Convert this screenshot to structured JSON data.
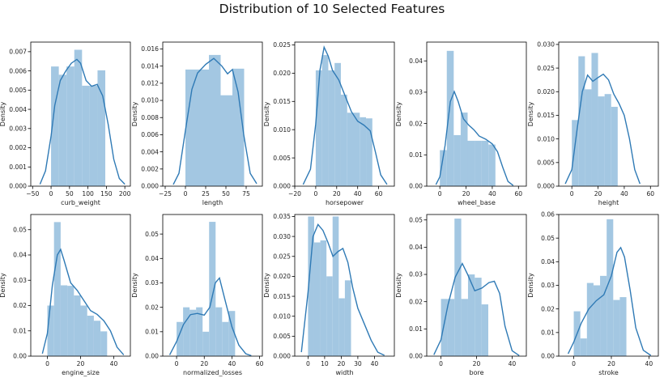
{
  "title": "Distribution of 10 Selected Features",
  "colors": {
    "bar": "#9ec4e0",
    "kde": "#2f7ab5",
    "axes": "#000000"
  },
  "chart_data": [
    {
      "type": "histogram+kde",
      "xlabel": "curb_weight",
      "ylabel": "Density",
      "xlim": [
        -55,
        215
      ],
      "ylim": [
        0,
        0.0075
      ],
      "xticks": [
        -50,
        0,
        50,
        100,
        150,
        200
      ],
      "xtick_labels": [
        "−50",
        "0",
        "50",
        "100",
        "150",
        "200"
      ],
      "yticks": [
        0,
        0.001,
        0.002,
        0.003,
        0.004,
        0.005,
        0.006,
        0.007
      ],
      "ytick_labels": [
        "0.000",
        "0.001",
        "0.002",
        "0.003",
        "0.004",
        "0.005",
        "0.006",
        "0.007"
      ],
      "bins": [
        0,
        21,
        42,
        63,
        84,
        105,
        126,
        147,
        168
      ],
      "values": [
        0.00623,
        0.0058,
        0.00623,
        0.0071,
        0.00523,
        0.00523,
        0.00603,
        0
      ],
      "kde_x": [
        -30,
        -15,
        0,
        10,
        25,
        40,
        55,
        70,
        80,
        95,
        110,
        125,
        140,
        155,
        170,
        185,
        200
      ],
      "kde_y": [
        0.0001,
        0.0008,
        0.0026,
        0.0042,
        0.0055,
        0.006,
        0.0064,
        0.0066,
        0.0064,
        0.0055,
        0.0052,
        0.0053,
        0.0047,
        0.0032,
        0.0014,
        0.0004,
        0.0001
      ]
    },
    {
      "type": "histogram+kde",
      "xlabel": "length",
      "ylabel": "Density",
      "xlim": [
        -28,
        95
      ],
      "ylim": [
        0,
        0.0168
      ],
      "xticks": [
        -25,
        0,
        25,
        50,
        75
      ],
      "xtick_labels": [
        "−25",
        "0",
        "25",
        "50",
        "75"
      ],
      "yticks": [
        0,
        0.002,
        0.004,
        0.006,
        0.008,
        0.01,
        0.012,
        0.014,
        0.016
      ],
      "ytick_labels": [
        "0.000",
        "0.002",
        "0.004",
        "0.006",
        "0.008",
        "0.010",
        "0.012",
        "0.014",
        "0.016"
      ],
      "bins": [
        0,
        14.5,
        29,
        43.5,
        58,
        72.5
      ],
      "values": [
        0.0136,
        0.0136,
        0.0153,
        0.0106,
        0.0137
      ],
      "kde_x": [
        -15,
        -8,
        0,
        8,
        15,
        25,
        35,
        45,
        52,
        58,
        65,
        72,
        80,
        88
      ],
      "kde_y": [
        0.0002,
        0.0015,
        0.0065,
        0.0113,
        0.0132,
        0.0142,
        0.0149,
        0.014,
        0.0131,
        0.0136,
        0.011,
        0.006,
        0.0015,
        0.0003
      ]
    },
    {
      "type": "histogram+kde",
      "xlabel": "horsepower",
      "ylabel": "Density",
      "xlim": [
        -20,
        75
      ],
      "ylim": [
        0,
        0.0255
      ],
      "xticks": [
        -20,
        0,
        20,
        40,
        60
      ],
      "xtick_labels": [
        "−20",
        "0",
        "20",
        "40",
        "60"
      ],
      "yticks": [
        0,
        0.005,
        0.01,
        0.015,
        0.02,
        0.025
      ],
      "ytick_labels": [
        "0.000",
        "0.005",
        "0.010",
        "0.015",
        "0.020",
        "0.025"
      ],
      "bins": [
        0,
        6,
        12,
        18,
        24,
        30,
        36,
        42,
        48,
        54,
        60
      ],
      "values": [
        0.0205,
        0.0232,
        0.0205,
        0.0218,
        0.0162,
        0.013,
        0.013,
        0.0122,
        0.012,
        0.0
      ],
      "kde_x": [
        -12,
        -5,
        0,
        4,
        8,
        12,
        16,
        22,
        28,
        34,
        40,
        46,
        52,
        57,
        62,
        68
      ],
      "kde_y": [
        0.0003,
        0.003,
        0.011,
        0.0205,
        0.0246,
        0.023,
        0.0205,
        0.0188,
        0.016,
        0.0132,
        0.0115,
        0.0108,
        0.0098,
        0.006,
        0.002,
        0.0003
      ]
    },
    {
      "type": "histogram+kde",
      "xlabel": "wheel_base",
      "ylabel": "Density",
      "xlim": [
        -10,
        66
      ],
      "ylim": [
        0,
        0.046
      ],
      "xticks": [
        0,
        20,
        40,
        60
      ],
      "xtick_labels": [
        "0",
        "20",
        "40",
        "60"
      ],
      "yticks": [
        0,
        0.01,
        0.02,
        0.03,
        0.04
      ],
      "ytick_labels": [
        "0.00",
        "0.01",
        "0.02",
        "0.03",
        "0.04"
      ],
      "bins": [
        0,
        5.3,
        10.6,
        15.9,
        21.2,
        26.5,
        31.8,
        37.1,
        42.4,
        47.7,
        53
      ],
      "values": [
        0.0115,
        0.0432,
        0.0163,
        0.0235,
        0.0145,
        0.0145,
        0.0145,
        0.0133,
        0.0,
        0.0
      ],
      "kde_x": [
        -3,
        0,
        4,
        8,
        11,
        14,
        18,
        22,
        26,
        30,
        35,
        40,
        44,
        48,
        52,
        56
      ],
      "kde_y": [
        0.0005,
        0.003,
        0.013,
        0.027,
        0.0302,
        0.027,
        0.0215,
        0.0195,
        0.018,
        0.016,
        0.015,
        0.0135,
        0.011,
        0.006,
        0.0015,
        0.0002
      ]
    },
    {
      "type": "histogram+kde",
      "xlabel": "height",
      "ylabel": "Density",
      "xlim": [
        -10,
        66
      ],
      "ylim": [
        0,
        0.0305
      ],
      "xticks": [
        0,
        20,
        40,
        60
      ],
      "xtick_labels": [
        "0",
        "20",
        "40",
        "60"
      ],
      "yticks": [
        0,
        0.005,
        0.01,
        0.015,
        0.02,
        0.025,
        0.03
      ],
      "ytick_labels": [
        "0.000",
        "0.005",
        "0.010",
        "0.015",
        "0.020",
        "0.025",
        "0.030"
      ],
      "bins": [
        0,
        5,
        10,
        15,
        20,
        25,
        30,
        35,
        40,
        45,
        50
      ],
      "values": [
        0.014,
        0.0275,
        0.0205,
        0.0282,
        0.019,
        0.0195,
        0.0168,
        0.0,
        0.0,
        0.0
      ],
      "kde_x": [
        -5,
        0,
        4,
        8,
        12,
        16,
        20,
        24,
        28,
        32,
        36,
        40,
        44,
        48,
        52
      ],
      "kde_y": [
        0.0005,
        0.0035,
        0.012,
        0.02,
        0.0235,
        0.0222,
        0.023,
        0.0237,
        0.0225,
        0.0195,
        0.0175,
        0.015,
        0.01,
        0.0035,
        0.0005
      ]
    },
    {
      "type": "histogram+kde",
      "xlabel": "engine_size",
      "ylabel": "Density",
      "xlim": [
        -10,
        50
      ],
      "ylim": [
        0,
        0.056
      ],
      "xticks": [
        0,
        20,
        40
      ],
      "xtick_labels": [
        "0",
        "20",
        "40"
      ],
      "yticks": [
        0,
        0.01,
        0.02,
        0.03,
        0.04,
        0.05
      ],
      "ytick_labels": [
        "0.00",
        "0.01",
        "0.02",
        "0.03",
        "0.04",
        "0.05"
      ],
      "bins": [
        0,
        4,
        8,
        12,
        16,
        20,
        24,
        28,
        32,
        36,
        40
      ],
      "values": [
        0.02,
        0.053,
        0.028,
        0.0278,
        0.024,
        0.02,
        0.016,
        0.014,
        0.0098,
        0.0
      ],
      "kde_x": [
        -3,
        0,
        3,
        6,
        8,
        10,
        14,
        18,
        22,
        26,
        30,
        34,
        38,
        42,
        46
      ],
      "kde_y": [
        0.001,
        0.009,
        0.028,
        0.04,
        0.0422,
        0.038,
        0.029,
        0.026,
        0.022,
        0.018,
        0.0165,
        0.014,
        0.01,
        0.0035,
        0.0005
      ]
    },
    {
      "type": "histogram+kde",
      "xlabel": "normalized_losses",
      "ylabel": "Density",
      "xlim": [
        -10,
        62
      ],
      "ylim": [
        0,
        0.058
      ],
      "xticks": [
        0,
        20,
        40,
        60
      ],
      "xtick_labels": [
        "0",
        "20",
        "40",
        "60"
      ],
      "yticks": [
        0,
        0.01,
        0.02,
        0.03,
        0.04,
        0.05
      ],
      "ytick_labels": [
        "0.00",
        "0.01",
        "0.02",
        "0.03",
        "0.04",
        "0.05"
      ],
      "bins": [
        0,
        4.7,
        9.4,
        14.1,
        18.8,
        23.5,
        28.2,
        32.9,
        37.6,
        42.3,
        47
      ],
      "values": [
        0.014,
        0.02,
        0.019,
        0.02,
        0.01,
        0.055,
        0.02,
        0.014,
        0.0185,
        0.0
      ],
      "kde_x": [
        -5,
        0,
        5,
        10,
        15,
        20,
        24,
        28,
        31,
        35,
        40,
        45,
        50,
        54
      ],
      "kde_y": [
        0.0005,
        0.006,
        0.013,
        0.017,
        0.0175,
        0.0168,
        0.02,
        0.03,
        0.032,
        0.023,
        0.012,
        0.0045,
        0.001,
        0.0002
      ]
    },
    {
      "type": "histogram+kde",
      "xlabel": "width",
      "ylabel": "Density",
      "xlim": [
        -8,
        52
      ],
      "ylim": [
        0,
        0.0355
      ],
      "xticks": [
        0,
        10,
        20,
        30,
        40
      ],
      "xtick_labels": [
        "0",
        "10",
        "20",
        "30",
        "40"
      ],
      "yticks": [
        0,
        0.005,
        0.01,
        0.015,
        0.02,
        0.025,
        0.03,
        0.035
      ],
      "ytick_labels": [
        "0.000",
        "0.005",
        "0.010",
        "0.015",
        "0.020",
        "0.025",
        "0.030",
        "0.035"
      ],
      "bins": [
        0,
        3.7,
        7.4,
        11.1,
        14.8,
        18.5,
        22.2,
        25.9,
        29.6,
        33.3,
        37
      ],
      "values": [
        0.035,
        0.0285,
        0.029,
        0.02,
        0.035,
        0.0145,
        0.019,
        0.0,
        0.0,
        0.0
      ],
      "kde_x": [
        -4,
        0,
        3,
        6,
        9,
        12,
        15,
        18,
        21,
        24,
        27,
        30,
        34,
        38,
        42,
        46
      ],
      "kde_y": [
        0.001,
        0.016,
        0.03,
        0.033,
        0.0315,
        0.0285,
        0.025,
        0.0262,
        0.027,
        0.0235,
        0.017,
        0.012,
        0.008,
        0.004,
        0.001,
        0.0002
      ]
    },
    {
      "type": "histogram+kde",
      "xlabel": "bore",
      "ylabel": "Density",
      "xlim": [
        -8,
        48
      ],
      "ylim": [
        0,
        0.052
      ],
      "xticks": [
        0,
        20,
        40
      ],
      "xtick_labels": [
        "0",
        "20",
        "40"
      ],
      "yticks": [
        0,
        0.01,
        0.02,
        0.03,
        0.04,
        0.05
      ],
      "ytick_labels": [
        "0.00",
        "0.01",
        "0.02",
        "0.03",
        "0.04",
        "0.05"
      ],
      "bins": [
        0,
        3.8,
        7.6,
        11.4,
        15.2,
        19,
        22.8,
        26.6,
        30.4,
        34.2,
        38
      ],
      "values": [
        0.021,
        0.021,
        0.0505,
        0.021,
        0.03,
        0.0288,
        0.019,
        0.0,
        0.0,
        0.0
      ],
      "kde_x": [
        -4,
        0,
        4,
        8,
        12,
        15,
        19,
        23,
        27,
        30,
        33,
        36,
        40,
        44
      ],
      "kde_y": [
        0.0005,
        0.006,
        0.019,
        0.029,
        0.034,
        0.03,
        0.024,
        0.025,
        0.027,
        0.0275,
        0.023,
        0.011,
        0.002,
        0.0002
      ]
    },
    {
      "type": "histogram+kde",
      "xlabel": "stroke",
      "ylabel": "Density",
      "xlim": [
        -8,
        45
      ],
      "ylim": [
        0,
        0.06
      ],
      "xticks": [
        0,
        20,
        40
      ],
      "xtick_labels": [
        "0",
        "20",
        "40"
      ],
      "yticks": [
        0,
        0.01,
        0.02,
        0.03,
        0.04,
        0.05,
        0.06
      ],
      "ytick_labels": [
        "0.00",
        "0.01",
        "0.02",
        "0.03",
        "0.04",
        "0.05",
        "0.06"
      ],
      "bins": [
        0,
        3.5,
        7,
        10.5,
        14,
        17.5,
        21,
        24.5,
        28,
        31.5,
        35
      ],
      "values": [
        0.019,
        0.0075,
        0.031,
        0.03,
        0.034,
        0.058,
        0.0238,
        0.025,
        0.0,
        0.0
      ],
      "kde_x": [
        -3,
        0,
        4,
        8,
        12,
        16,
        20,
        23,
        25,
        27,
        30,
        33,
        37,
        41
      ],
      "kde_y": [
        0.001,
        0.006,
        0.014,
        0.02,
        0.0235,
        0.026,
        0.034,
        0.044,
        0.046,
        0.042,
        0.028,
        0.012,
        0.0025,
        0.0003
      ]
    }
  ]
}
